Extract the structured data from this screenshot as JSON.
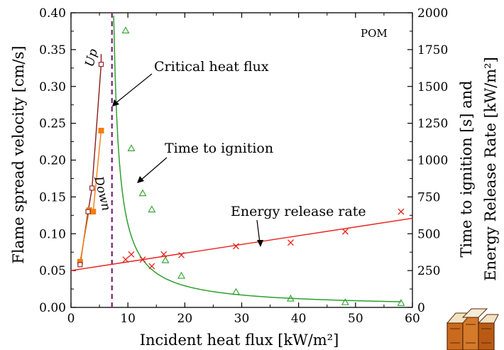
{
  "chart_data": {
    "type": "scatter",
    "xlabel": "Incident heat flux [kW/m²]",
    "ylabel_left": "Flame spread velocity [cm/s]",
    "ylabel_right_line1": "Time to ignition [s] and",
    "ylabel_right_line2": "Energy Release Rate [kW/m²]",
    "xlim": [
      0,
      60
    ],
    "ylim_left": [
      0,
      0.4
    ],
    "ylim_right": [
      0,
      2000
    ],
    "x_ticks": [
      "0",
      "10",
      "20",
      "30",
      "40",
      "50",
      "60"
    ],
    "y_left_ticks": [
      "0.00",
      "0.05",
      "0.10",
      "0.15",
      "0.20",
      "0.25",
      "0.30",
      "0.35",
      "0.40"
    ],
    "y_right_ticks": [
      "0",
      "250",
      "500",
      "750",
      "1000",
      "1250",
      "1500",
      "1750",
      "2000"
    ],
    "grid": false,
    "annotations": {
      "material": "POM",
      "critical": "Critical heat flux",
      "time_to_ignition": "Time to ignition",
      "energy_release": "Energy release rate",
      "up": "Up",
      "down": "Down"
    },
    "critical_heat_flux": 7.2,
    "series": [
      {
        "name": "Up",
        "axis": "left",
        "color": "#8b1a1a",
        "marker": "square-open",
        "x": [
          1.6,
          3.0,
          3.7,
          5.3
        ],
        "y": [
          0.058,
          0.13,
          0.162,
          0.33
        ],
        "line_x": [
          1.6,
          3.0,
          3.7,
          5.3,
          5.3
        ],
        "line_y": [
          0.058,
          0.13,
          0.162,
          0.33,
          0.344
        ]
      },
      {
        "name": "Down",
        "axis": "left",
        "color": "#f07f12",
        "marker": "square-filled",
        "x": [
          1.6,
          3.2,
          3.9,
          5.3
        ],
        "y": [
          0.062,
          0.132,
          0.13,
          0.24
        ],
        "line_x": [
          1.6,
          3.2,
          3.9,
          5.3
        ],
        "line_y": [
          0.062,
          0.132,
          0.13,
          0.24
        ]
      },
      {
        "name": "Time to ignition",
        "axis": "right",
        "color": "#2ca02c",
        "marker": "triangle-open",
        "x": [
          9.6,
          10.6,
          12.6,
          14.2,
          16.6,
          19.4,
          29.0,
          38.6,
          48.2,
          58.0
        ],
        "y": [
          1880,
          1080,
          775,
          665,
          320,
          215,
          105,
          60,
          35,
          30
        ],
        "fit_model": "a/(x-b)",
        "fit_a": 1980,
        "fit_b": 6.5,
        "fit_xrange": [
          7.5,
          58
        ]
      },
      {
        "name": "Energy release rate",
        "axis": "right",
        "color": "#e8201c",
        "marker": "x",
        "x": [
          9.6,
          10.6,
          12.6,
          14.2,
          16.3,
          19.4,
          29.0,
          38.6,
          48.2,
          58.0
        ],
        "y": [
          325,
          360,
          325,
          280,
          360,
          355,
          415,
          440,
          515,
          650
        ],
        "fit_line": [
          [
            0,
            250
          ],
          [
            60,
            605
          ]
        ]
      }
    ]
  },
  "logo": {
    "name": "books-logo"
  }
}
